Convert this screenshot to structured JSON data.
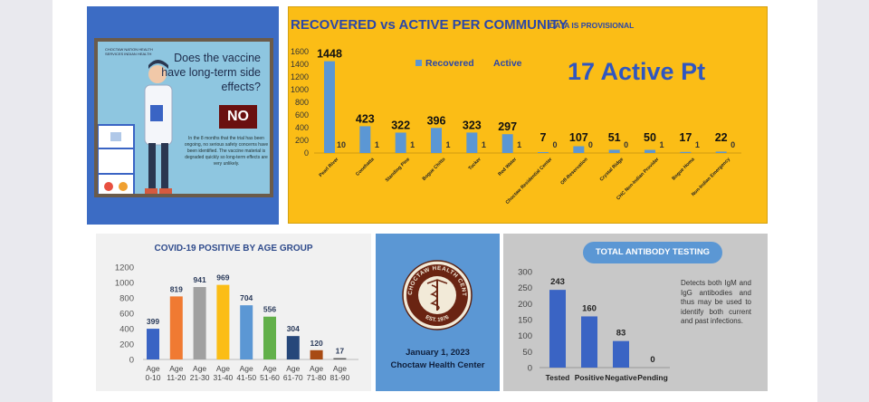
{
  "vaccine": {
    "logo": "CHOCTAW NATION HEALTH SERVICES INDIAN HEALTH",
    "question": "Does the vaccine have long-term side effects?",
    "answer": "NO",
    "body": "In the 8 months that the trial has been ongoing, no serious safety concerns have been identified. The vaccine material is degraded quickly so long-term effects are very unlikely."
  },
  "choctaw": {
    "seal_top": "CHOCTAW HEALTH CENTER",
    "seal_bottom": "EST. 1976",
    "date": "January 1, 2023",
    "name": "Choctaw Health Center"
  },
  "colors": {
    "community_bar": "#5b97d4",
    "antibody_bar": "#3a64c4"
  },
  "chart_data": [
    {
      "type": "bar",
      "title": "RECOVERED vs ACTIVE PER COMMUNITY",
      "subtitle": "DATA IS PROVISIONAL",
      "annotation": "17 Active Pt",
      "legend": [
        "Recovered",
        "Active"
      ],
      "legend_position": "top",
      "categories": [
        "Pearl River",
        "Conehatta",
        "Standing Pine",
        "Bogue Chitto",
        "Tucker",
        "Red Water",
        "Choctaw Residential Center",
        "Off-Reservation",
        "Crystal Ridge",
        "CHC Non-Indian Provider",
        "Bogue Homa",
        "Non-Indian Emergency"
      ],
      "series": [
        {
          "name": "Recovered",
          "values": [
            1448,
            423,
            322,
            396,
            323,
            297,
            7,
            107,
            51,
            50,
            17,
            22
          ]
        },
        {
          "name": "Active",
          "values": [
            10,
            1,
            1,
            1,
            1,
            1,
            0,
            0,
            0,
            1,
            1,
            0
          ]
        }
      ],
      "ylim": [
        0,
        1600
      ],
      "yticks": [
        0,
        200,
        400,
        600,
        800,
        1000,
        1200,
        1400,
        1600
      ]
    },
    {
      "type": "bar",
      "title": "COVID-19 POSITIVE BY AGE GROUP",
      "categories": [
        "Age 0-10",
        "Age 11-20",
        "Age 21-30",
        "Age 31-40",
        "Age 41-50",
        "Age 51-60",
        "Age 61-70",
        "Age 71-80",
        "Age 81-90"
      ],
      "values": [
        399,
        819,
        941,
        969,
        704,
        556,
        304,
        120,
        17
      ],
      "colors": [
        "#3a64c4",
        "#f07a32",
        "#a0a0a0",
        "#fbbd16",
        "#5b97d4",
        "#62b04a",
        "#26477a",
        "#a84b14",
        "#5a5a5a"
      ],
      "ylim": [
        0,
        1200
      ],
      "yticks": [
        0,
        200,
        400,
        600,
        800,
        1000,
        1200
      ]
    },
    {
      "type": "bar",
      "title": "TOTAL ANTIBODY TESTING",
      "categories": [
        "Tested",
        "Positive",
        "Negative",
        "Pending"
      ],
      "values": [
        243,
        160,
        83,
        0
      ],
      "ylim": [
        0,
        300
      ],
      "yticks": [
        0,
        50,
        100,
        150,
        200,
        250,
        300
      ],
      "note": "Detects both IgM and IgG antibodies and thus may be used to identify both current and past infections."
    }
  ]
}
